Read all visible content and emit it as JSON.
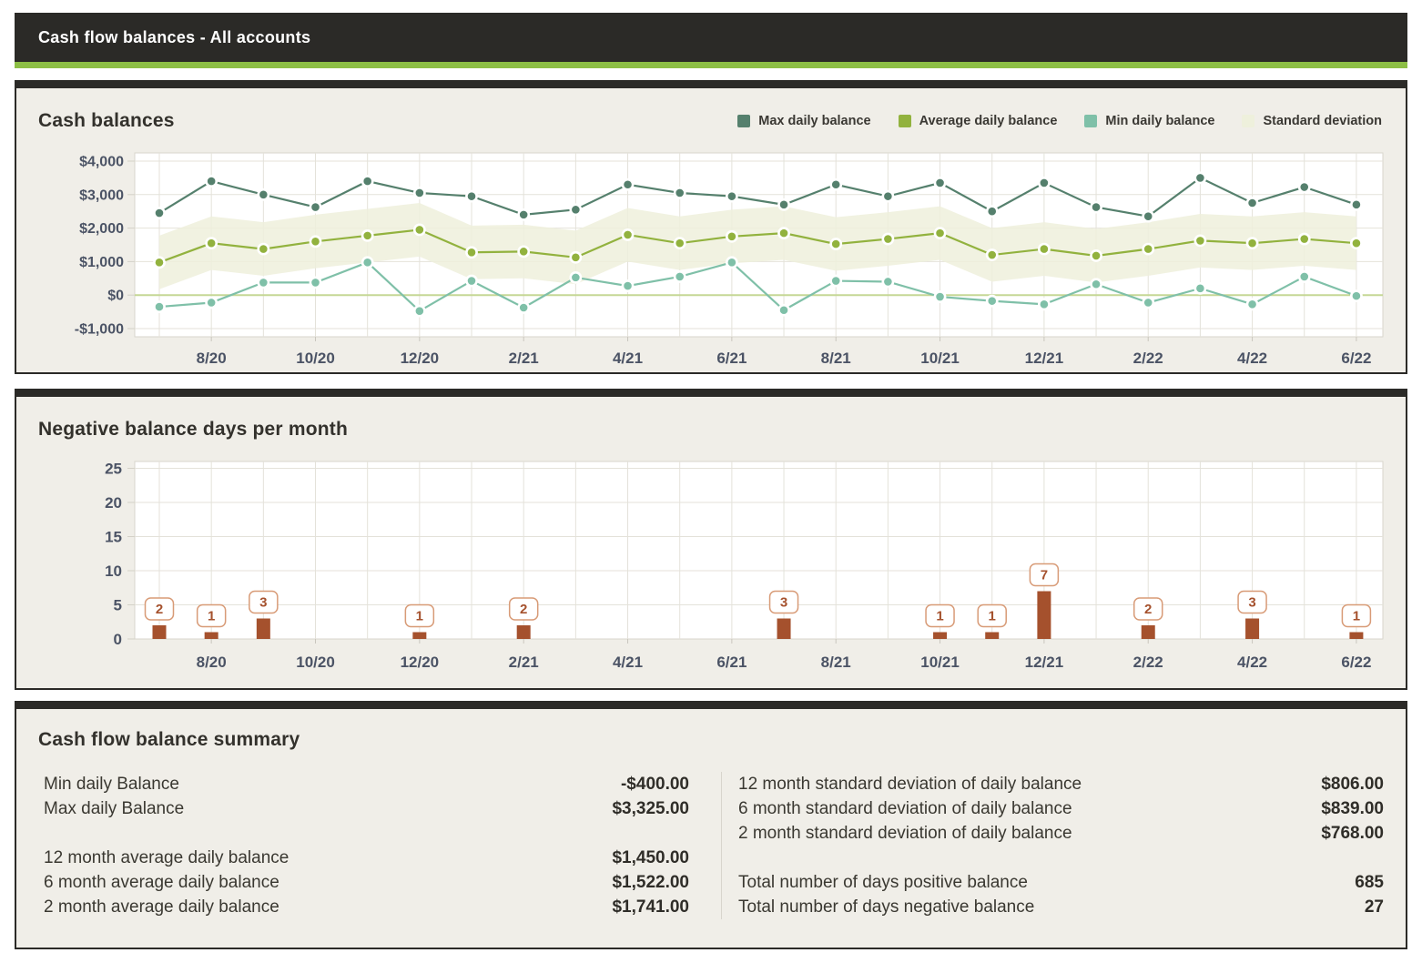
{
  "theme": {
    "header_bg": "#2b2a27",
    "accent_green": "#8dbf45",
    "panel_bg": "#f0eee8",
    "plot_bg": "#ffffff",
    "grid_color": "#e4e2da",
    "plot_border": "#d9d6cd",
    "axis_text": "#4b5365",
    "title_text": "#33312c",
    "max_line": "#55806d",
    "avg_line": "#92b23e",
    "min_line": "#7fc0a8",
    "std_band": "#eef0dc",
    "zero_line": "#c5d795",
    "bar_color": "#a5512d",
    "bar_label_border": "#d89b77"
  },
  "header": {
    "title": "Cash flow balances - All accounts"
  },
  "panels": {
    "balances_title": "Cash balances",
    "negative_days_title": "Negative balance days per month",
    "summary_title": "Cash flow balance summary"
  },
  "legend": [
    {
      "label": "Max daily balance",
      "color": "#55806d"
    },
    {
      "label": "Average daily balance",
      "color": "#92b23e"
    },
    {
      "label": "Min daily balance",
      "color": "#7fc0a8"
    },
    {
      "label": "Standard deviation",
      "color": "#eef0dc"
    }
  ],
  "chart_data": [
    {
      "type": "line",
      "title": "Cash balances",
      "categories": [
        "7/20",
        "8/20",
        "9/20",
        "10/20",
        "11/20",
        "12/20",
        "1/21",
        "2/21",
        "3/21",
        "4/21",
        "5/21",
        "6/21",
        "7/21",
        "8/21",
        "9/21",
        "10/21",
        "11/21",
        "12/21",
        "1/22",
        "2/22",
        "3/22",
        "4/22",
        "5/22",
        "6/22"
      ],
      "x_tick_labels": [
        "8/20",
        "10/20",
        "12/20",
        "2/21",
        "4/21",
        "6/21",
        "8/21",
        "10/21",
        "12/21",
        "2/22",
        "4/22",
        "6/22"
      ],
      "y_tick_values": [
        4000,
        3000,
        2000,
        1000,
        0,
        -1000
      ],
      "y_tick_labels": [
        "$4,000",
        "$3,000",
        "$2,000",
        "$1,000",
        "$0",
        "-$1,000"
      ],
      "ylim": [
        -1250,
        4250
      ],
      "grid": true,
      "legend_position": "top-right",
      "series": [
        {
          "name": "Max daily balance",
          "color": "#55806d",
          "values": [
            2450,
            3400,
            3000,
            2625,
            3400,
            3050,
            2950,
            2400,
            2550,
            3300,
            3050,
            2950,
            2700,
            3300,
            2950,
            3350,
            2500,
            3350,
            2625,
            2350,
            3500,
            2750,
            3225,
            2700
          ]
        },
        {
          "name": "Average daily balance",
          "color": "#92b23e",
          "values": [
            975,
            1550,
            1375,
            1600,
            1775,
            1950,
            1275,
            1300,
            1125,
            1800,
            1550,
            1750,
            1850,
            1525,
            1675,
            1850,
            1200,
            1375,
            1175,
            1375,
            1625,
            1550,
            1675,
            1550
          ]
        },
        {
          "name": "Min daily balance",
          "color": "#7fc0a8",
          "values": [
            -350,
            -225,
            375,
            375,
            975,
            -475,
            425,
            -375,
            525,
            275,
            550,
            975,
            -450,
            425,
            400,
            -50,
            -175,
            -275,
            325,
            -225,
            200,
            -275,
            550,
            -25
          ]
        }
      ],
      "std_band": {
        "name": "Standard deviation",
        "color": "#eef0dc",
        "upper": [
          1775,
          2350,
          2175,
          2400,
          2575,
          2750,
          2075,
          2100,
          1925,
          2600,
          2350,
          2550,
          2650,
          2325,
          2475,
          2650,
          2000,
          2175,
          1975,
          2175,
          2425,
          2350,
          2475,
          2350
        ],
        "lower": [
          175,
          750,
          575,
          800,
          975,
          1150,
          475,
          500,
          325,
          1000,
          750,
          950,
          1050,
          725,
          875,
          1050,
          400,
          575,
          375,
          575,
          825,
          750,
          875,
          750
        ]
      },
      "zero_line": 0
    },
    {
      "type": "bar",
      "title": "Negative balance days per month",
      "categories": [
        "7/20",
        "8/20",
        "9/20",
        "10/20",
        "11/20",
        "12/20",
        "1/21",
        "2/21",
        "3/21",
        "4/21",
        "5/21",
        "6/21",
        "7/21",
        "8/21",
        "9/21",
        "10/21",
        "11/21",
        "12/21",
        "1/22",
        "2/22",
        "3/22",
        "4/22",
        "5/22",
        "6/22"
      ],
      "x_tick_labels": [
        "8/20",
        "10/20",
        "12/20",
        "2/21",
        "4/21",
        "6/21",
        "8/21",
        "10/21",
        "12/21",
        "2/22",
        "4/22",
        "6/22"
      ],
      "values": [
        2,
        1,
        3,
        0,
        0,
        1,
        0,
        2,
        0,
        0,
        0,
        0,
        3,
        0,
        0,
        1,
        1,
        7,
        0,
        2,
        0,
        3,
        0,
        1
      ],
      "y_tick_values": [
        0,
        5,
        10,
        15,
        20,
        25
      ],
      "ylim": [
        0,
        26
      ],
      "grid": true,
      "bar_color": "#a5512d",
      "data_labels": true
    }
  ],
  "summary": {
    "title": "Cash flow balance summary",
    "left": [
      {
        "label": "Min daily Balance",
        "value": "-$400.00"
      },
      {
        "label": "Max daily Balance",
        "value": "$3,325.00"
      },
      {
        "spacer": true
      },
      {
        "label": "12 month average daily balance",
        "value": "$1,450.00"
      },
      {
        "label": "6 month average daily balance",
        "value": "$1,522.00"
      },
      {
        "label": "2 month average daily balance",
        "value": "$1,741.00"
      }
    ],
    "right": [
      {
        "label": "12 month standard deviation of daily balance",
        "value": "$806.00"
      },
      {
        "label": "6 month standard deviation of daily balance",
        "value": "$839.00"
      },
      {
        "label": "2 month standard deviation of daily balance",
        "value": "$768.00"
      },
      {
        "spacer": true
      },
      {
        "label": "Total number of days positive balance",
        "value": "685"
      },
      {
        "label": "Total number of days negative balance",
        "value": "27"
      }
    ]
  }
}
